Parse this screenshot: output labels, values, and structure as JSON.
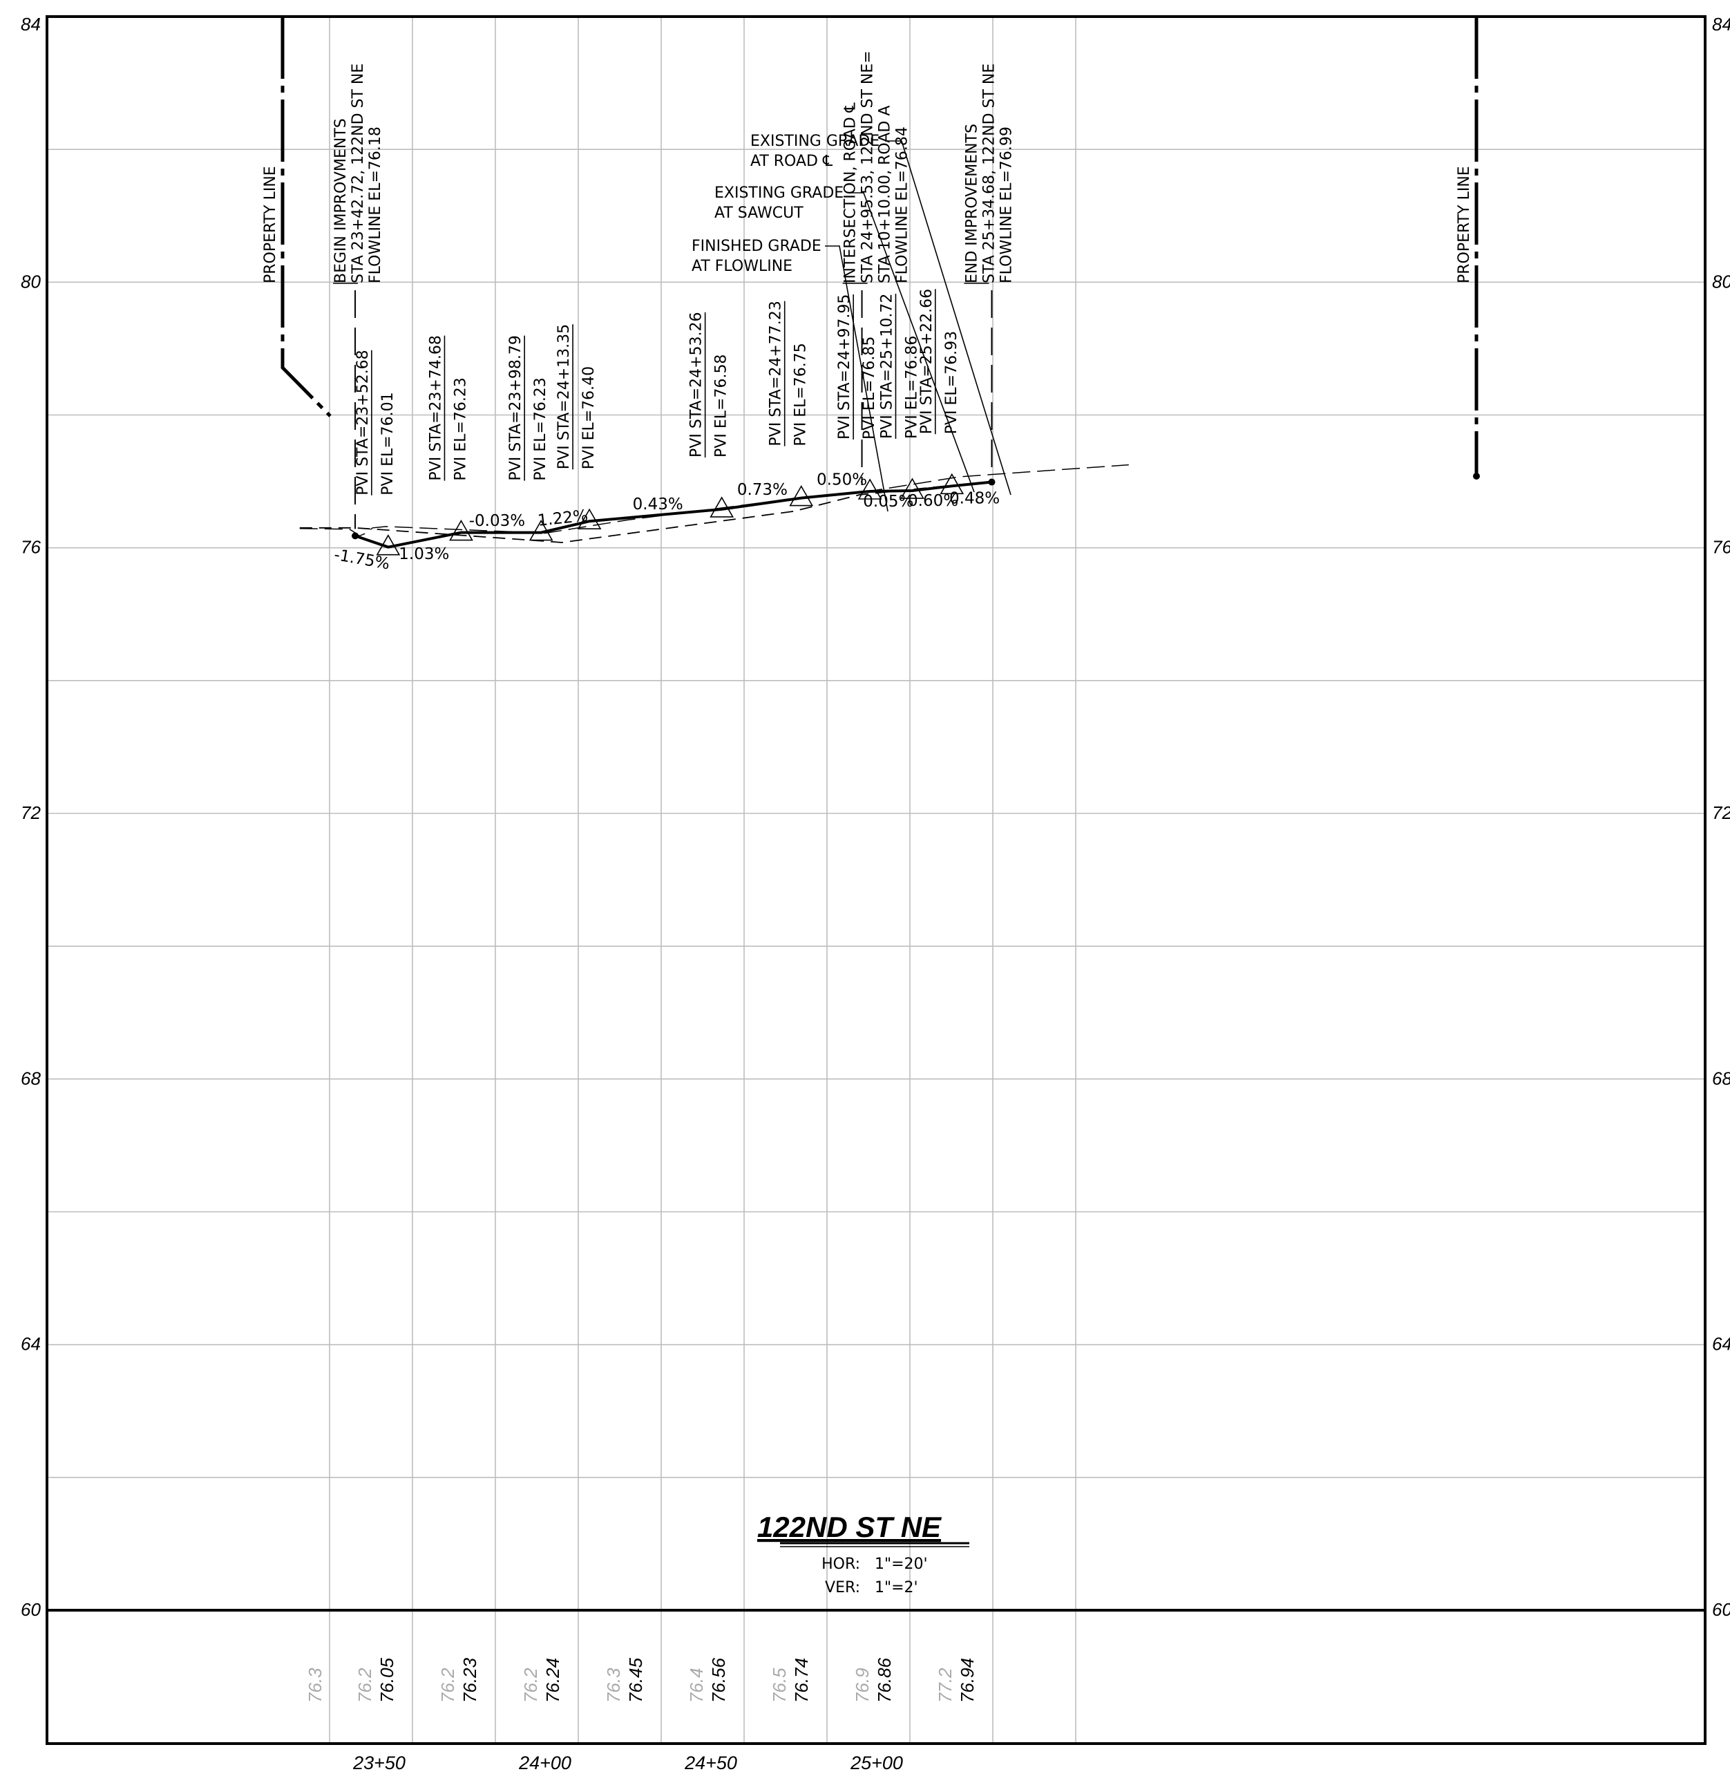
{
  "drawing_title": "122ND ST NE",
  "scale": {
    "hor_label": "HOR:",
    "hor_value": "1\"=20'",
    "ver_label": "VER:",
    "ver_value": "1\"=2'"
  },
  "colors": {
    "line": "#000000",
    "grid": "#bdbdbd",
    "existing_elev_text": "#aaaaaa"
  },
  "chart_data": {
    "type": "line",
    "title": "122ND ST NE",
    "xlim": [
      2326,
      2576
    ],
    "ylim": [
      60,
      84
    ],
    "y_ticks": [
      "84",
      "80",
      "76",
      "72",
      "68",
      "64",
      "60"
    ],
    "x_ticks": [
      {
        "x": 2350,
        "label": "23+50"
      },
      {
        "x": 2400,
        "label": "24+00"
      },
      {
        "x": 2450,
        "label": "24+50"
      },
      {
        "x": 2500,
        "label": "25+00"
      }
    ],
    "grid": true,
    "elevation_columns": [
      {
        "x": 2335,
        "existing": "76.3",
        "proposed": ""
      },
      {
        "x": 2350,
        "existing": "76.2",
        "proposed": "76.05"
      },
      {
        "x": 2375,
        "existing": "76.2",
        "proposed": "76.23"
      },
      {
        "x": 2400,
        "existing": "76.2",
        "proposed": "76.24"
      },
      {
        "x": 2425,
        "existing": "76.3",
        "proposed": "76.45"
      },
      {
        "x": 2450,
        "existing": "76.4",
        "proposed": "76.56"
      },
      {
        "x": 2475,
        "existing": "76.5",
        "proposed": "76.74"
      },
      {
        "x": 2500,
        "existing": "76.9",
        "proposed": "76.86"
      },
      {
        "x": 2525,
        "existing": "77.2",
        "proposed": "76.94"
      }
    ],
    "series": [
      {
        "name": "FINISHED GRADE AT FLOWLINE",
        "x": [
          2342.72,
          2352.68,
          2374.68,
          2398.79,
          2413.35,
          2453.26,
          2477.23,
          2495.53,
          2497.95,
          2510.72,
          2522.66,
          2534.68
        ],
        "y": [
          76.18,
          76.01,
          76.23,
          76.23,
          76.4,
          76.58,
          76.75,
          76.84,
          76.85,
          76.86,
          76.93,
          76.99
        ]
      },
      {
        "name": "EXISTING GRADE AT SAWCUT",
        "x": [
          2326,
          2342.7,
          2400,
          2405,
          2475,
          2495,
          2534.7
        ],
        "y": [
          76.3,
          76.3,
          76.1,
          76.08,
          76.55,
          76.8,
          77.0
        ]
      },
      {
        "name": "EXISTING GRADE AT ROAD CL",
        "x": [
          2326,
          2341,
          2342,
          2344,
          2346,
          2348,
          2350,
          2352,
          2400,
          2425,
          2475,
          2500,
          2525,
          2576
        ],
        "y": [
          76.29,
          76.28,
          76.25,
          76.18,
          76.22,
          76.3,
          76.31,
          76.32,
          76.22,
          76.42,
          76.74,
          76.87,
          77.07,
          77.25
        ]
      }
    ],
    "pvi_labels": [
      {
        "x": 2352.68,
        "y": 76.01,
        "sta": "PVI STA=23+52.68",
        "el": "PVI EL=76.01"
      },
      {
        "x": 2374.68,
        "y": 76.23,
        "sta": "PVI STA=23+74.68",
        "el": "PVI EL=76.23"
      },
      {
        "x": 2398.79,
        "y": 76.23,
        "sta": "PVI STA=23+98.79",
        "el": "PVI EL=76.23"
      },
      {
        "x": 2413.35,
        "y": 76.4,
        "sta": "PVI STA=24+13.35",
        "el": "PVI EL=76.40"
      },
      {
        "x": 2453.26,
        "y": 76.58,
        "sta": "PVI STA=24+53.26",
        "el": "PVI EL=76.58"
      },
      {
        "x": 2477.23,
        "y": 76.75,
        "sta": "PVI STA=24+77.23",
        "el": "PVI EL=76.75"
      },
      {
        "x": 2497.95,
        "y": 76.85,
        "sta": "PVI STA=24+97.95",
        "el": "PVI EL=76.85"
      },
      {
        "x": 2510.72,
        "y": 76.86,
        "sta": "PVI STA=25+10.72",
        "el": "PVI EL=76.86"
      },
      {
        "x": 2522.66,
        "y": 76.93,
        "sta": "PVI STA=25+22.66",
        "el": "PVI EL=76.93"
      }
    ],
    "grade_labels": [
      {
        "x": 2344.5,
        "y": 75.75,
        "text": "-1.75%",
        "angle": 10
      },
      {
        "x": 2363.5,
        "y": 75.83,
        "text": "1.03%",
        "angle": 0
      },
      {
        "x": 2385.5,
        "y": 76.33,
        "text": "-0.03%",
        "angle": 0
      },
      {
        "x": 2405.5,
        "y": 76.37,
        "text": "1.22%",
        "angle": -6
      },
      {
        "x": 2434,
        "y": 76.58,
        "text": "0.43%",
        "angle": 0
      },
      {
        "x": 2465.5,
        "y": 76.8,
        "text": "0.73%",
        "angle": 0
      },
      {
        "x": 2489.5,
        "y": 76.95,
        "text": "0.50%",
        "angle": 0
      },
      {
        "x": 2503.5,
        "y": 76.62,
        "text": "0.05%",
        "angle": 0
      },
      {
        "x": 2517,
        "y": 76.63,
        "text": "0.60%",
        "angle": 0
      },
      {
        "x": 2529.5,
        "y": 76.67,
        "text": "0.48%",
        "angle": 0
      }
    ],
    "property_lines": [
      {
        "label": "PROPERTY LINE"
      },
      {
        "label": "PROPERTY LINE"
      }
    ],
    "station_notes": [
      {
        "lines": [
          "BEGIN IMPROVMENTS",
          "STA 23+42.72, 122ND ST NE",
          "FLOWLINE EL=76.18"
        ]
      },
      {
        "lines": [
          "INTERSECTION, ROAD ℄",
          "STA 24+95.53, 122ND ST NE=",
          "STA 10+10.00, ROAD A",
          "FLOWLINE EL=76.84"
        ]
      },
      {
        "lines": [
          "END IMPROVEMENTS",
          "STA 25+34.68, 122ND ST NE",
          "FLOWLINE EL=76.99"
        ]
      }
    ],
    "callouts": [
      {
        "lines": [
          "EXISTING GRADE",
          "AT ROAD ℄"
        ]
      },
      {
        "lines": [
          "EXISTING GRADE",
          "AT SAWCUT"
        ]
      },
      {
        "lines": [
          "FINISHED GRADE",
          "AT FLOWLINE"
        ]
      }
    ]
  }
}
